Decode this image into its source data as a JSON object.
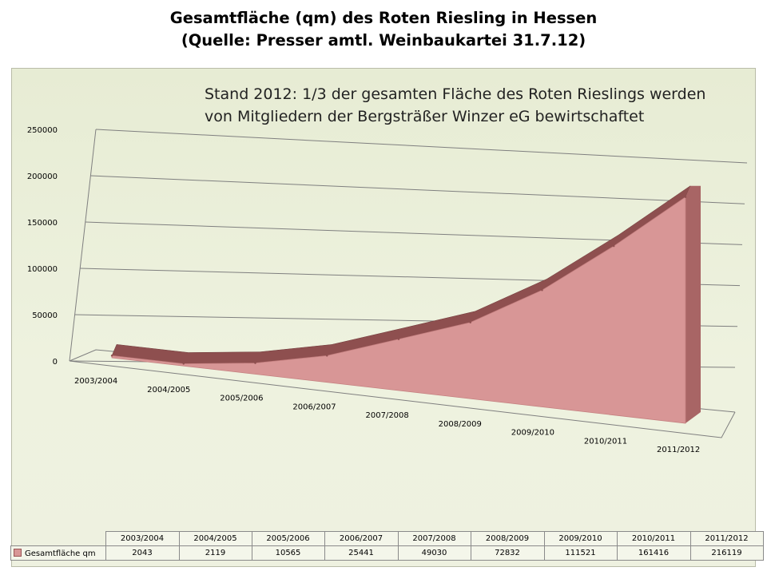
{
  "title_line1": "Gesamtfläche (qm) des Roten Riesling in Hessen",
  "title_line2": "(Quelle: Presser amtl. Weinbaukartei 31.7.12)",
  "note_line1": "Stand 2012:  1/3 der gesamten Fläche des Roten Rieslings werden",
  "note_line2": "von Mitgliedern der Bergsträßer Winzer eG bewirtschaftet",
  "colors": {
    "area": "#d89696",
    "area_top": "#8e4f4f",
    "panel": "#e9eed8",
    "grid": "#7f7f7f"
  },
  "chart_data": {
    "type": "area",
    "categories": [
      "2003/2004",
      "2004/2005",
      "2005/2006",
      "2006/2007",
      "2007/2008",
      "2008/2009",
      "2009/2010",
      "2010/2011",
      "2011/2012"
    ],
    "series": [
      {
        "name": "Gesamtfläche qm",
        "values": [
          2043,
          2119,
          10565,
          25441,
          49030,
          72832,
          111521,
          161416,
          216119
        ]
      }
    ],
    "y_ticks": [
      "0",
      "50000",
      "100000",
      "150000",
      "200000",
      "250000"
    ],
    "ylim": [
      0,
      250000
    ],
    "grid": true,
    "legend": "data table below chart",
    "three_d": true
  }
}
